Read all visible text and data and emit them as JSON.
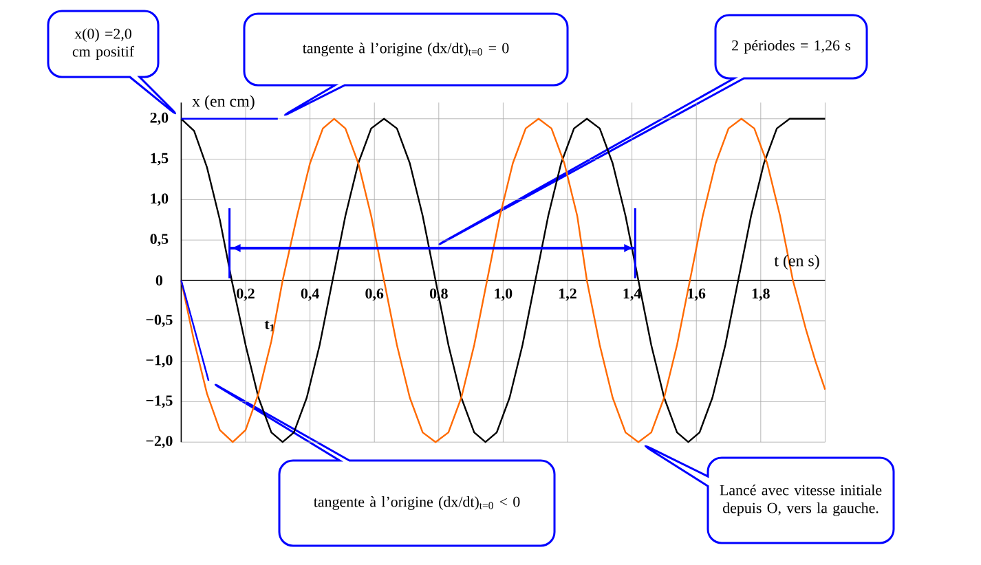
{
  "chart_data": {
    "type": "line",
    "xlabel": "t (en s)",
    "ylabel": "x (en cm)",
    "xlim": [
      0,
      2.0
    ],
    "ylim": [
      -2.0,
      2.2
    ],
    "xticks": [
      {
        "value": 0.2,
        "label": "0,2"
      },
      {
        "value": 0.4,
        "label": "0,4"
      },
      {
        "value": 0.6,
        "label": "0,6"
      },
      {
        "value": 0.8,
        "label": "0,8"
      },
      {
        "value": 1.0,
        "label": "1,0"
      },
      {
        "value": 1.2,
        "label": "1,2"
      },
      {
        "value": 1.4,
        "label": "1,4"
      },
      {
        "value": 1.6,
        "label": "1,6"
      },
      {
        "value": 1.8,
        "label": "1,8"
      },
      {
        "value": 2.0,
        "label": null
      }
    ],
    "yticks": [
      {
        "value": -2.0,
        "label": "−2,0"
      },
      {
        "value": -1.5,
        "label": "−1,5"
      },
      {
        "value": -1.0,
        "label": "−1,0"
      },
      {
        "value": -0.5,
        "label": "−0,5"
      },
      0,
      {
        "value": 0.5,
        "label": "0,5"
      },
      {
        "value": 1.0,
        "label": "1,0"
      },
      {
        "value": 1.5,
        "label": "1,5"
      },
      {
        "value": 2.0,
        "label": "2,0"
      }
    ],
    "grid": true,
    "marker": "none",
    "series": [
      {
        "color": "#000000",
        "x": [
          0,
          0.04,
          0.08,
          0.12,
          0.157,
          0.2,
          0.24,
          0.28,
          0.315,
          0.35,
          0.39,
          0.43,
          0.47,
          0.51,
          0.55,
          0.59,
          0.63,
          0.67,
          0.71,
          0.75,
          0.79,
          0.83,
          0.87,
          0.91,
          0.945,
          0.98,
          1.02,
          1.06,
          1.1,
          1.14,
          1.18,
          1.22,
          1.26,
          1.3,
          1.34,
          1.38,
          1.42,
          1.46,
          1.5,
          1.54,
          1.575,
          1.61,
          1.65,
          1.69,
          1.73,
          1.77,
          1.81,
          1.85,
          1.89,
          2.0
        ],
        "values": [
          2.0,
          1.85,
          1.4,
          0.75,
          0,
          -0.8,
          -1.45,
          -1.88,
          -2.0,
          -1.88,
          -1.45,
          -0.8,
          0,
          0.8,
          1.45,
          1.88,
          2.0,
          1.88,
          1.45,
          0.8,
          0,
          -0.8,
          -1.45,
          -1.88,
          -2.0,
          -1.88,
          -1.45,
          -0.8,
          0,
          0.8,
          1.45,
          1.88,
          2.0,
          1.88,
          1.45,
          0.8,
          0,
          -0.8,
          -1.45,
          -1.88,
          -2.0,
          -1.88,
          -1.45,
          -0.8,
          0,
          0.8,
          1.45,
          1.88,
          2.0,
          2.0
        ]
      },
      {
        "color": "#ff6a00",
        "x": [
          0,
          0.04,
          0.08,
          0.12,
          0.16,
          0.2,
          0.24,
          0.28,
          0.315,
          0.36,
          0.4,
          0.44,
          0.475,
          0.51,
          0.55,
          0.59,
          0.63,
          0.67,
          0.71,
          0.75,
          0.79,
          0.83,
          0.87,
          0.91,
          0.95,
          0.99,
          1.03,
          1.07,
          1.11,
          1.15,
          1.19,
          1.23,
          1.26,
          1.3,
          1.34,
          1.38,
          1.42,
          1.46,
          1.5,
          1.54,
          1.58,
          1.62,
          1.66,
          1.7,
          1.74,
          1.78,
          1.82,
          1.86,
          1.9,
          1.94,
          1.97,
          2.0
        ],
        "values": [
          0,
          -0.75,
          -1.4,
          -1.85,
          -2.0,
          -1.85,
          -1.4,
          -0.75,
          0,
          0.8,
          1.45,
          1.88,
          2.0,
          1.88,
          1.45,
          0.8,
          0,
          -0.8,
          -1.45,
          -1.88,
          -2.0,
          -1.88,
          -1.45,
          -0.8,
          0,
          0.8,
          1.45,
          1.88,
          2.0,
          1.88,
          1.45,
          0.8,
          0,
          -0.8,
          -1.45,
          -1.88,
          -2.0,
          -1.88,
          -1.45,
          -0.8,
          0,
          0.8,
          1.45,
          1.88,
          2.0,
          1.88,
          1.45,
          0.8,
          0,
          -0.6,
          -1.0,
          -1.35
        ]
      },
      {
        "color": "#0000ff",
        "x": [
          0,
          0.3
        ],
        "values": [
          2.0,
          2.0
        ]
      },
      {
        "color": "#0000ff",
        "x": [
          0,
          0.085
        ],
        "values": [
          0,
          -1.24
        ]
      },
      {
        "color": "#0000ff",
        "x": [
          0.15,
          1.41
        ],
        "values": [
          0.4,
          0.4
        ]
      }
    ],
    "annotations": [
      "x(0) =2,0 cm positif",
      "tangente à l’origine (dx/dt)$_{t=0}$ = 0",
      "tangente à l’origine (dx/dt)$_{t=0}$ < 0",
      "Lancé avec vitesse initiale depuis O, vers la gauche.",
      "2 périodes = 1,26 s",
      "t$_{1}$"
    ]
  }
}
